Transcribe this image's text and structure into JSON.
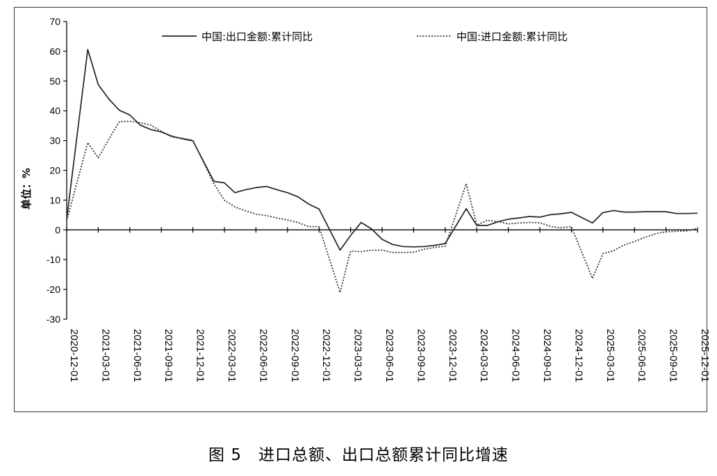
{
  "caption": "图 5　进口总额、出口总额累计同比增速",
  "chart_data": {
    "type": "line",
    "ylabel": "单位：%",
    "ylim": [
      -30,
      70
    ],
    "yticks": [
      "70",
      "60",
      "50",
      "40",
      "30",
      "20",
      "10",
      "0",
      "-10",
      "-20",
      "-30"
    ],
    "xticks": [
      "2020-12-01",
      "2021-03-01",
      "2021-06-01",
      "2021-09-01",
      "2021-12-01",
      "2022-03-01",
      "2022-06-01",
      "2022-09-01",
      "2022-12-01",
      "2023-03-01",
      "2023-06-01",
      "2023-09-01",
      "2023-12-01",
      "2024-03-01",
      "2024-06-01",
      "2024-09-01",
      "2024-12-01",
      "2025-03-01",
      "2025-06-01",
      "2025-09-01",
      "2025-12-01"
    ],
    "legend_position": "top",
    "x": [
      "2020-12",
      "2021-02",
      "2021-03",
      "2021-04",
      "2021-05",
      "2021-06",
      "2021-07",
      "2021-08",
      "2021-09",
      "2021-10",
      "2021-11",
      "2021-12",
      "2022-02",
      "2022-03",
      "2022-04",
      "2022-05",
      "2022-06",
      "2022-07",
      "2022-08",
      "2022-09",
      "2022-10",
      "2022-11",
      "2022-12",
      "2023-02",
      "2023-03",
      "2023-04",
      "2023-05",
      "2023-06",
      "2023-07",
      "2023-08",
      "2023-09",
      "2023-10",
      "2023-11",
      "2023-12",
      "2024-02",
      "2024-03",
      "2024-04",
      "2024-05",
      "2024-06",
      "2024-07",
      "2024-08",
      "2024-09",
      "2024-10",
      "2024-11",
      "2024-12",
      "2025-02",
      "2025-03",
      "2025-04",
      "2025-05",
      "2025-06",
      "2025-07",
      "2025-08",
      "2025-09",
      "2025-10",
      "2025-11",
      "2025-12"
    ],
    "series": [
      {
        "name": "中国:出口金额:累计同比",
        "style": "solid",
        "color": "#222222",
        "values": [
          3.6,
          60.6,
          48.8,
          44.0,
          40.2,
          38.6,
          35.2,
          33.7,
          32.9,
          31.5,
          30.6,
          29.9,
          16.3,
          15.8,
          12.5,
          13.5,
          14.2,
          14.6,
          13.5,
          12.5,
          11.1,
          8.7,
          7.0,
          -6.8,
          -1.9,
          2.5,
          0.3,
          -3.2,
          -4.9,
          -5.6,
          -5.7,
          -5.6,
          -5.2,
          -4.6,
          7.1,
          1.5,
          1.5,
          2.7,
          3.6,
          4.0,
          4.5,
          4.3,
          5.1,
          5.4,
          5.9,
          2.3,
          5.8,
          6.5,
          6.0,
          6.0,
          6.1,
          6.1,
          6.1,
          5.5,
          5.5,
          5.6
        ]
      },
      {
        "name": "中国:进口金额:累计同比",
        "style": "dotted",
        "color": "#333333",
        "values": [
          3.1,
          29.3,
          24.2,
          30.4,
          36.3,
          36.5,
          36.0,
          35.2,
          33.1,
          31.2,
          30.8,
          30.1,
          15.5,
          10.0,
          7.7,
          6.4,
          5.3,
          4.8,
          4.0,
          3.3,
          2.5,
          1.1,
          1.1,
          -21.0,
          -7.1,
          -7.3,
          -6.8,
          -6.8,
          -7.6,
          -7.6,
          -7.5,
          -6.5,
          -5.9,
          -5.5,
          15.5,
          1.6,
          3.2,
          2.8,
          2.0,
          2.3,
          2.5,
          2.4,
          1.2,
          0.7,
          1.1,
          -16.3,
          -8.0,
          -7.0,
          -5.1,
          -3.9,
          -2.5,
          -1.3,
          -0.6,
          -0.5,
          -0.3,
          0.5
        ]
      }
    ]
  }
}
